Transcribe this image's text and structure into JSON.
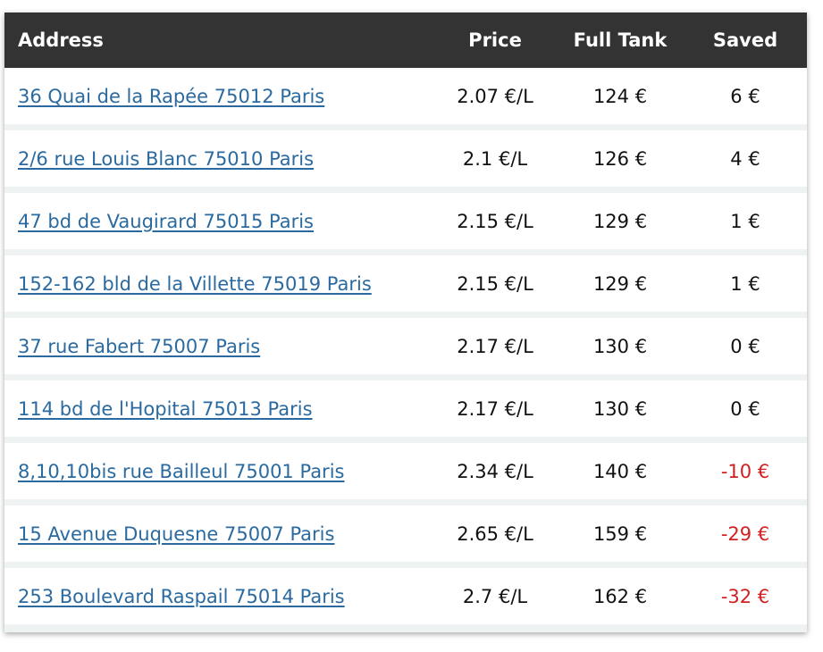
{
  "table": {
    "headers": {
      "address": "Address",
      "price": "Price",
      "full_tank": "Full Tank",
      "saved": "Saved"
    },
    "rows": [
      {
        "address": "36 Quai de la Rapée 75012 Paris",
        "price": "2.07 €/L",
        "full_tank": "124 €",
        "saved": "6 €"
      },
      {
        "address": "2/6 rue Louis Blanc 75010 Paris",
        "price": "2.1 €/L",
        "full_tank": "126 €",
        "saved": "4 €"
      },
      {
        "address": "47 bd de Vaugirard 75015 Paris",
        "price": "2.15 €/L",
        "full_tank": "129 €",
        "saved": "1 €"
      },
      {
        "address": "152-162 bld de la Villette 75019 Paris",
        "price": "2.15 €/L",
        "full_tank": "129 €",
        "saved": "1 €"
      },
      {
        "address": "37 rue Fabert 75007 Paris",
        "price": "2.17 €/L",
        "full_tank": "130 €",
        "saved": "0 €"
      },
      {
        "address": "114 bd de l'Hopital 75013 Paris",
        "price": "2.17 €/L",
        "full_tank": "130 €",
        "saved": "0 €"
      },
      {
        "address": "8,10,10bis rue Bailleul 75001 Paris",
        "price": "2.34 €/L",
        "full_tank": "140 €",
        "saved": "-10 €"
      },
      {
        "address": "15 Avenue Duquesne 75007 Paris",
        "price": "2.65 €/L",
        "full_tank": "159 €",
        "saved": "-29 €"
      },
      {
        "address": "253 Boulevard Raspail 75014 Paris",
        "price": "2.7 €/L",
        "full_tank": "162 €",
        "saved": "-32 €"
      }
    ]
  },
  "colors": {
    "header_bg": "#333333",
    "link": "#2a6aa0",
    "negative": "#d02020",
    "row_gap": "#eef2f2"
  }
}
